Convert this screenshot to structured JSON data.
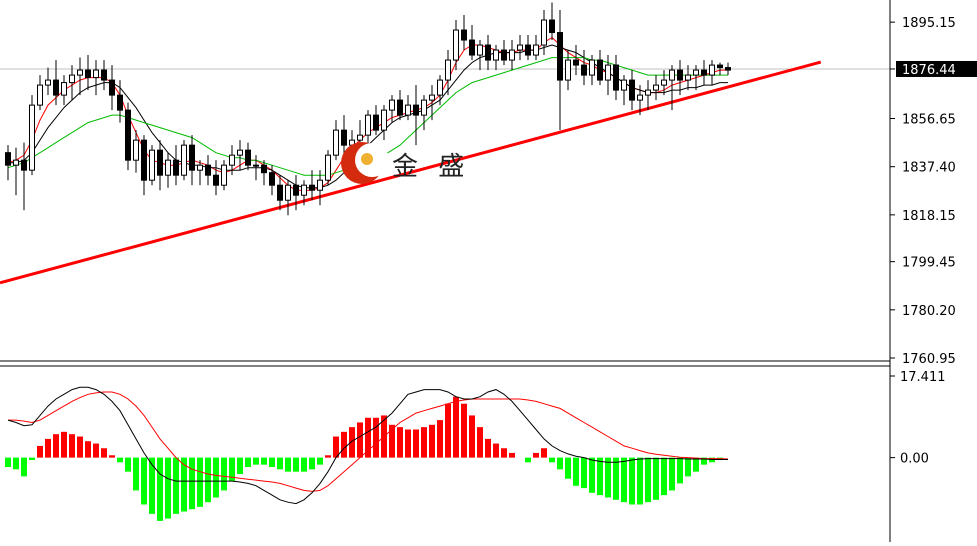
{
  "chart_data": [
    {
      "type": "candlestick",
      "panel": "price",
      "ylim": [
        1760.95,
        1904.0
      ],
      "y_ticks": [
        "1895.15",
        "1876.44",
        "1856.65",
        "1837.40",
        "1818.15",
        "1799.45",
        "1780.20",
        "1760.95"
      ],
      "current_price": "1876.44",
      "candles": [
        [
          1843,
          1846,
          1832,
          1838
        ],
        [
          1838,
          1845,
          1826,
          1840
        ],
        [
          1840,
          1847,
          1820,
          1836
        ],
        [
          1836,
          1866,
          1834,
          1862
        ],
        [
          1862,
          1874,
          1860,
          1870
        ],
        [
          1870,
          1877,
          1866,
          1872
        ],
        [
          1872,
          1880,
          1862,
          1866
        ],
        [
          1866,
          1874,
          1862,
          1871
        ],
        [
          1871,
          1878,
          1864,
          1874
        ],
        [
          1874,
          1881,
          1866,
          1876
        ],
        [
          1876,
          1882,
          1868,
          1873
        ],
        [
          1873,
          1880,
          1866,
          1876
        ],
        [
          1876,
          1880,
          1868,
          1872
        ],
        [
          1872,
          1878,
          1860,
          1866
        ],
        [
          1866,
          1872,
          1855,
          1860
        ],
        [
          1860,
          1863,
          1836,
          1840
        ],
        [
          1840,
          1852,
          1835,
          1848
        ],
        [
          1848,
          1850,
          1826,
          1832
        ],
        [
          1832,
          1846,
          1830,
          1844
        ],
        [
          1844,
          1848,
          1828,
          1834
        ],
        [
          1834,
          1843,
          1829,
          1840
        ],
        [
          1840,
          1846,
          1830,
          1834
        ],
        [
          1834,
          1848,
          1832,
          1846
        ],
        [
          1846,
          1850,
          1830,
          1836
        ],
        [
          1836,
          1840,
          1830,
          1838
        ],
        [
          1838,
          1842,
          1830,
          1834
        ],
        [
          1834,
          1840,
          1826,
          1830
        ],
        [
          1830,
          1840,
          1828,
          1838
        ],
        [
          1838,
          1846,
          1834,
          1842
        ],
        [
          1842,
          1848,
          1836,
          1844
        ],
        [
          1844,
          1847,
          1836,
          1838
        ],
        [
          1838,
          1842,
          1832,
          1838
        ],
        [
          1838,
          1840,
          1830,
          1835
        ],
        [
          1835,
          1838,
          1826,
          1830
        ],
        [
          1830,
          1834,
          1820,
          1824
        ],
        [
          1824,
          1832,
          1818,
          1830
        ],
        [
          1830,
          1834,
          1820,
          1826
        ],
        [
          1826,
          1832,
          1822,
          1830
        ],
        [
          1830,
          1836,
          1824,
          1828
        ],
        [
          1828,
          1836,
          1822,
          1832
        ],
        [
          1832,
          1844,
          1830,
          1842
        ],
        [
          1842,
          1856,
          1840,
          1852
        ],
        [
          1852,
          1858,
          1842,
          1846
        ],
        [
          1846,
          1852,
          1838,
          1848
        ],
        [
          1848,
          1856,
          1842,
          1850
        ],
        [
          1850,
          1860,
          1846,
          1858
        ],
        [
          1858,
          1862,
          1850,
          1852
        ],
        [
          1852,
          1862,
          1848,
          1860
        ],
        [
          1860,
          1866,
          1855,
          1864
        ],
        [
          1864,
          1868,
          1856,
          1858
        ],
        [
          1858,
          1866,
          1856,
          1862
        ],
        [
          1862,
          1870,
          1846,
          1858
        ],
        [
          1858,
          1866,
          1852,
          1864
        ],
        [
          1864,
          1870,
          1856,
          1866
        ],
        [
          1866,
          1874,
          1862,
          1872
        ],
        [
          1872,
          1884,
          1866,
          1880
        ],
        [
          1880,
          1896,
          1876,
          1892
        ],
        [
          1892,
          1898,
          1884,
          1888
        ],
        [
          1888,
          1894,
          1880,
          1882
        ],
        [
          1882,
          1888,
          1876,
          1886
        ],
        [
          1886,
          1890,
          1876,
          1880
        ],
        [
          1880,
          1886,
          1876,
          1884
        ],
        [
          1884,
          1888,
          1878,
          1880
        ],
        [
          1880,
          1888,
          1876,
          1884
        ],
        [
          1884,
          1890,
          1880,
          1886
        ],
        [
          1886,
          1890,
          1880,
          1882
        ],
        [
          1882,
          1890,
          1880,
          1886
        ],
        [
          1886,
          1900,
          1882,
          1896
        ],
        [
          1896,
          1903,
          1888,
          1891
        ],
        [
          1891,
          1900,
          1852,
          1872
        ],
        [
          1872,
          1884,
          1868,
          1880
        ],
        [
          1880,
          1886,
          1874,
          1878
        ],
        [
          1878,
          1884,
          1870,
          1874
        ],
        [
          1874,
          1882,
          1870,
          1880
        ],
        [
          1880,
          1884,
          1870,
          1872
        ],
        [
          1872,
          1882,
          1866,
          1878
        ],
        [
          1878,
          1882,
          1864,
          1868
        ],
        [
          1868,
          1874,
          1862,
          1872
        ],
        [
          1872,
          1876,
          1860,
          1864
        ],
        [
          1864,
          1870,
          1858,
          1866
        ],
        [
          1866,
          1872,
          1860,
          1868
        ],
        [
          1868,
          1874,
          1864,
          1870
        ],
        [
          1870,
          1876,
          1866,
          1872
        ],
        [
          1872,
          1878,
          1860,
          1876
        ],
        [
          1876,
          1880,
          1866,
          1872
        ],
        [
          1872,
          1878,
          1868,
          1874
        ],
        [
          1874,
          1878,
          1868,
          1876
        ],
        [
          1876,
          1880,
          1870,
          1874
        ],
        [
          1874,
          1880,
          1870,
          1878
        ],
        [
          1878,
          1879,
          1874,
          1877
        ],
        [
          1877,
          1879,
          1874,
          1876
        ]
      ],
      "overlays": [
        {
          "name": "MA fast",
          "color": "#ff0000",
          "data": [
            1839,
            1840,
            1842,
            1848,
            1856,
            1862,
            1865,
            1868,
            1870,
            1872,
            1873,
            1873,
            1873,
            1871,
            1866,
            1858,
            1851,
            1844,
            1840,
            1839,
            1838,
            1838,
            1839,
            1840,
            1839,
            1838,
            1836,
            1835,
            1836,
            1838,
            1840,
            1840,
            1838,
            1836,
            1833,
            1830,
            1828,
            1828,
            1828,
            1829,
            1831,
            1836,
            1841,
            1845,
            1848,
            1851,
            1853,
            1855,
            1857,
            1858,
            1859,
            1860,
            1861,
            1863,
            1866,
            1872,
            1879,
            1884,
            1886,
            1886,
            1885,
            1884,
            1883,
            1883,
            1884,
            1884,
            1884,
            1887,
            1889,
            1886,
            1883,
            1881,
            1879,
            1878,
            1876,
            1875,
            1873,
            1871,
            1869,
            1868,
            1867,
            1867,
            1868,
            1870,
            1871,
            1872,
            1873,
            1874,
            1875,
            1876,
            1876
          ]
        },
        {
          "name": "MA slow",
          "color": "#000000",
          "data": [
            1839,
            1839,
            1840,
            1843,
            1848,
            1853,
            1857,
            1861,
            1864,
            1867,
            1869,
            1870,
            1871,
            1871,
            1869,
            1865,
            1861,
            1856,
            1851,
            1847,
            1843,
            1840,
            1839,
            1838,
            1838,
            1837,
            1837,
            1836,
            1836,
            1836,
            1837,
            1837,
            1837,
            1836,
            1834,
            1832,
            1830,
            1829,
            1829,
            1829,
            1830,
            1832,
            1835,
            1839,
            1842,
            1846,
            1849,
            1852,
            1855,
            1857,
            1858,
            1859,
            1860,
            1862,
            1864,
            1868,
            1872,
            1876,
            1879,
            1881,
            1882,
            1883,
            1883,
            1883,
            1883,
            1884,
            1884,
            1885,
            1886,
            1885,
            1884,
            1883,
            1881,
            1879,
            1877,
            1875,
            1873,
            1871,
            1869,
            1868,
            1867,
            1867,
            1867,
            1868,
            1868,
            1869,
            1869,
            1870,
            1870,
            1871,
            1871
          ]
        },
        {
          "name": "MA long",
          "color": "#00bb00",
          "data": [
            1837,
            1838,
            1839,
            1841,
            1843,
            1845,
            1847,
            1849,
            1851,
            1853,
            1855,
            1856,
            1857,
            1858,
            1858,
            1857,
            1856,
            1855,
            1854,
            1853,
            1852,
            1851,
            1850,
            1849,
            1847,
            1845,
            1843,
            1842,
            1841,
            1841,
            1840,
            1840,
            1839,
            1838,
            1837,
            1836,
            1835,
            1834,
            1834,
            1834,
            1834,
            1835,
            1836,
            1837,
            1838,
            1839,
            1840,
            1842,
            1844,
            1846,
            1849,
            1852,
            1855,
            1858,
            1861,
            1864,
            1867,
            1869,
            1871,
            1872,
            1873,
            1874,
            1875,
            1876,
            1877,
            1878,
            1879,
            1880,
            1881,
            1881,
            1881,
            1881,
            1881,
            1880,
            1880,
            1879,
            1878,
            1877,
            1876,
            1875,
            1874,
            1874,
            1874,
            1874,
            1874,
            1874,
            1874,
            1874,
            1874,
            1874,
            1874
          ]
        }
      ],
      "trendline": {
        "color": "#ff0000",
        "from": [
          -1,
          1791.0
        ],
        "to": [
          101.6,
          1879.2
        ]
      },
      "watermark_text": "金 盛"
    },
    {
      "type": "macd",
      "panel": "indicator",
      "ylim": [
        -18.0,
        17.411
      ],
      "y_ticks": [
        "17.411",
        "0.00"
      ],
      "histogram_pos_color": "#ff0000",
      "histogram_neg_color": "#00ff00",
      "histogram": [
        -2.0,
        -2.5,
        -4.0,
        -0.5,
        2.5,
        4.0,
        5.0,
        5.5,
        5.0,
        4.5,
        3.5,
        3.0,
        2.0,
        0.5,
        -1.0,
        -3.0,
        -7.0,
        -10.0,
        -12.0,
        -13.5,
        -13.0,
        -12.0,
        -11.5,
        -11.0,
        -10.5,
        -9.5,
        -8.5,
        -7.0,
        -5.0,
        -3.5,
        -2.0,
        -1.5,
        -1.5,
        -2.0,
        -2.5,
        -3.0,
        -3.0,
        -3.0,
        -2.5,
        -1.5,
        0.5,
        4.5,
        5.5,
        6.5,
        7.5,
        8.5,
        8.5,
        9.0,
        7.0,
        6.5,
        6.0,
        6.0,
        6.5,
        7.0,
        8.0,
        11.5,
        13.0,
        11.5,
        9.0,
        6.5,
        4.0,
        3.0,
        2.0,
        1.0,
        0.0,
        -1.0,
        1.0,
        2.0,
        -1.0,
        -2.5,
        -4.5,
        -6.0,
        -6.5,
        -7.5,
        -8.0,
        -8.5,
        -9.0,
        -9.5,
        -10.0,
        -10.0,
        -9.5,
        -9.0,
        -8.0,
        -7.0,
        -5.5,
        -4.0,
        -3.0,
        -1.5,
        -1.0,
        -0.5,
        0.0
      ],
      "signal_line": {
        "color": "#ff0000",
        "data": [
          8.0,
          8.0,
          7.8,
          7.5,
          8.0,
          9.0,
          10.0,
          11.0,
          12.0,
          12.8,
          13.5,
          13.8,
          14.0,
          14.0,
          13.5,
          12.5,
          11.0,
          9.0,
          6.5,
          4.0,
          2.0,
          0.0,
          -1.5,
          -2.5,
          -3.0,
          -3.5,
          -3.8,
          -4.0,
          -4.2,
          -4.4,
          -4.6,
          -4.8,
          -5.0,
          -5.2,
          -5.5,
          -6.0,
          -6.5,
          -7.0,
          -7.2,
          -7.0,
          -6.0,
          -4.5,
          -3.0,
          -1.5,
          0.0,
          1.5,
          3.0,
          4.5,
          6.0,
          7.5,
          8.5,
          9.5,
          10.0,
          10.5,
          11.0,
          11.5,
          12.0,
          12.3,
          12.5,
          12.5,
          12.5,
          12.5,
          12.5,
          12.5,
          12.5,
          12.3,
          12.0,
          11.5,
          11.0,
          10.5,
          9.5,
          8.5,
          7.5,
          6.5,
          5.5,
          4.5,
          3.5,
          2.5,
          2.0,
          1.5,
          1.0,
          0.7,
          0.5,
          0.3,
          0.1,
          0.0,
          -0.1,
          -0.2,
          -0.2,
          -0.2,
          -0.3
        ]
      },
      "main_line": {
        "color": "#000000",
        "data": [
          8.0,
          7.5,
          6.8,
          7.0,
          9.0,
          11.0,
          12.5,
          13.5,
          14.5,
          15.0,
          15.0,
          14.5,
          13.5,
          12.0,
          10.0,
          7.0,
          4.0,
          1.0,
          -1.5,
          -3.5,
          -4.5,
          -5.0,
          -5.0,
          -5.0,
          -5.0,
          -5.0,
          -5.0,
          -5.0,
          -5.0,
          -5.2,
          -5.5,
          -6.0,
          -7.0,
          -8.0,
          -9.0,
          -9.5,
          -9.8,
          -9.0,
          -7.5,
          -5.5,
          -3.0,
          0.0,
          2.0,
          3.5,
          4.5,
          5.5,
          6.5,
          8.0,
          9.5,
          11.5,
          13.5,
          14.0,
          14.5,
          14.5,
          14.5,
          14.0,
          13.0,
          12.5,
          12.5,
          13.0,
          14.0,
          14.5,
          13.5,
          12.0,
          10.0,
          8.0,
          6.0,
          4.0,
          2.5,
          1.5,
          0.8,
          0.3,
          0.0,
          -0.5,
          -0.8,
          -1.0,
          -1.0,
          -0.8,
          -0.5,
          -0.3,
          -0.2,
          -0.2,
          -0.2,
          -0.2,
          -0.2,
          -0.3,
          -0.3,
          -0.3,
          -0.4,
          -0.4,
          -0.4
        ]
      }
    }
  ],
  "price_axis": {
    "labels": [
      "1895.15",
      "1876.44",
      "1856.65",
      "1837.40",
      "1818.15",
      "1799.45",
      "1780.20",
      "1760.95"
    ],
    "current": "1876.44"
  },
  "macd_axis": {
    "labels": [
      "17.411",
      "0.00"
    ]
  },
  "watermark": {
    "text": "金 盛"
  }
}
